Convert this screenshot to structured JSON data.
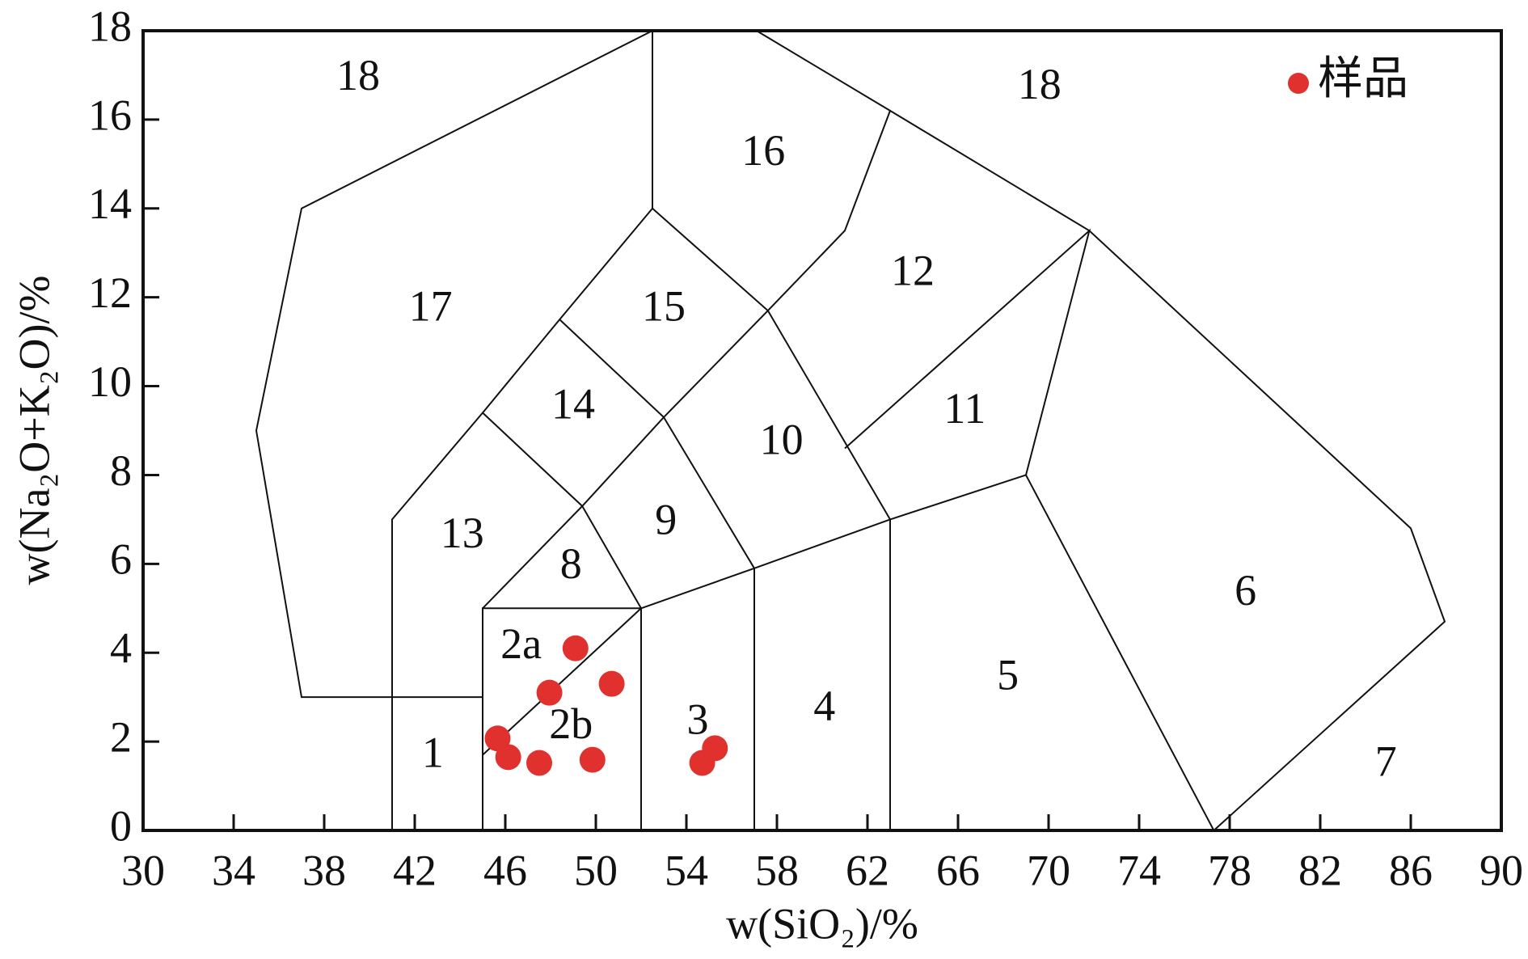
{
  "chart_data": {
    "type": "scatter",
    "x_label": "w(SiO₂)/%",
    "y_label": "w(Na₂O+K₂O)/%",
    "xlim": [
      30,
      90
    ],
    "ylim": [
      0,
      18
    ],
    "xticks": [
      30,
      34,
      38,
      42,
      46,
      50,
      54,
      58,
      62,
      66,
      70,
      74,
      78,
      82,
      86,
      90
    ],
    "yticks": [
      0,
      2,
      4,
      6,
      8,
      10,
      12,
      14,
      16,
      18
    ],
    "legend": "top-right",
    "series": [
      {
        "name": "样品",
        "color": "#e0312f",
        "x": [
          49.1,
          50.7,
          47.95,
          45.66,
          46.13,
          47.5,
          49.85,
          54.7,
          55.26
        ],
        "values": [
          4.1,
          3.3,
          3.1,
          2.07,
          1.65,
          1.52,
          1.59,
          1.52,
          1.85
        ]
      }
    ],
    "boundaries": [
      {
        "x": [
          45,
          37,
          35,
          37,
          52.5,
          52.5
        ],
        "y": [
          3,
          3,
          9,
          14,
          18,
          14
        ]
      },
      {
        "x": [
          57.1,
          63,
          71.8,
          86,
          87.5,
          77.3
        ],
        "y": [
          18,
          16.2,
          13.5,
          6.8,
          4.7,
          0
        ]
      },
      {
        "x": [
          63,
          61,
          57.6
        ],
        "y": [
          16.2,
          13.5,
          11.7
        ]
      },
      {
        "x": [
          52.5,
          57.6,
          63,
          63
        ],
        "y": [
          14,
          11.7,
          7,
          0
        ]
      },
      {
        "x": [
          52.5,
          48.4,
          45,
          41,
          41
        ],
        "y": [
          14,
          11.5,
          9.4,
          7,
          0
        ]
      },
      {
        "x": [
          48.4,
          53,
          57.6
        ],
        "y": [
          11.5,
          9.3,
          11.7
        ]
      },
      {
        "x": [
          45,
          49.4,
          53
        ],
        "y": [
          9.4,
          7.3,
          9.3
        ]
      },
      {
        "x": [
          45,
          45,
          52,
          52
        ],
        "y": [
          0,
          5,
          5,
          0
        ]
      },
      {
        "x": [
          45,
          49.4,
          52
        ],
        "y": [
          5,
          7.3,
          5
        ]
      },
      {
        "x": [
          53,
          57,
          57
        ],
        "y": [
          9.3,
          5.9,
          0
        ]
      },
      {
        "x": [
          45,
          52
        ],
        "y": [
          1.7,
          5
        ]
      },
      {
        "x": [
          52,
          57,
          63,
          69
        ],
        "y": [
          5,
          5.9,
          7,
          8
        ]
      },
      {
        "x": [
          61,
          71.8,
          69,
          77.3
        ],
        "y": [
          8.6,
          13.5,
          8,
          0
        ]
      }
    ],
    "fields": [
      {
        "label": "18",
        "x": 39.5,
        "y": 16.9
      },
      {
        "label": "18",
        "x": 69.6,
        "y": 16.7
      },
      {
        "label": "16",
        "x": 57.4,
        "y": 15.2
      },
      {
        "label": "17",
        "x": 42.7,
        "y": 11.7
      },
      {
        "label": "15",
        "x": 53,
        "y": 11.7
      },
      {
        "label": "12",
        "x": 64,
        "y": 12.5
      },
      {
        "label": "14",
        "x": 49,
        "y": 9.5
      },
      {
        "label": "10",
        "x": 58.2,
        "y": 8.7
      },
      {
        "label": "11",
        "x": 66.3,
        "y": 9.4
      },
      {
        "label": "13",
        "x": 44.1,
        "y": 6.6
      },
      {
        "label": "9",
        "x": 53.1,
        "y": 6.9
      },
      {
        "label": "8",
        "x": 48.9,
        "y": 5.9
      },
      {
        "label": "6",
        "x": 78.7,
        "y": 5.3
      },
      {
        "label": "2a",
        "x": 46.7,
        "y": 4.1
      },
      {
        "label": "5",
        "x": 68.2,
        "y": 3.4
      },
      {
        "label": "4",
        "x": 60.1,
        "y": 2.7
      },
      {
        "label": "3",
        "x": 54.5,
        "y": 2.4
      },
      {
        "label": "2b",
        "x": 48.9,
        "y": 2.3
      },
      {
        "label": "1",
        "x": 42.8,
        "y": 1.65
      },
      {
        "label": "7",
        "x": 84.9,
        "y": 1.45
      }
    ]
  }
}
